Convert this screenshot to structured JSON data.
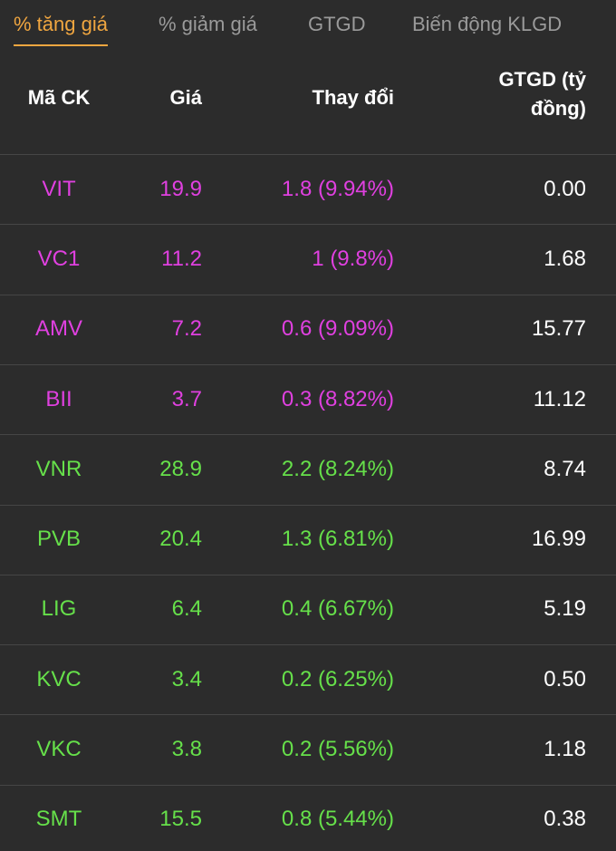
{
  "tabs": [
    "% tăng giá",
    "% giảm giá",
    "GTGD",
    "Biến động KLGD"
  ],
  "active_tab": 0,
  "table": {
    "headers": [
      "Mã CK",
      "Giá",
      "Thay đổi",
      "GTGD (tỷ đồng)"
    ],
    "rows": [
      {
        "color": "#e040e0",
        "cells": [
          "VIT",
          "19.9",
          "1.8 (9.94%)",
          "0.00"
        ]
      },
      {
        "color": "#e040e0",
        "cells": [
          "VC1",
          "11.2",
          "1 (9.8%)",
          "1.68"
        ]
      },
      {
        "color": "#e040e0",
        "cells": [
          "AMV",
          "7.2",
          "0.6 (9.09%)",
          "15.77"
        ]
      },
      {
        "color": "#e040e0",
        "cells": [
          "BII",
          "3.7",
          "0.3 (8.82%)",
          "11.12"
        ]
      },
      {
        "color": "#66e04a",
        "cells": [
          "VNR",
          "28.9",
          "2.2 (8.24%)",
          "8.74"
        ]
      },
      {
        "color": "#66e04a",
        "cells": [
          "PVB",
          "20.4",
          "1.3 (6.81%)",
          "16.99"
        ]
      },
      {
        "color": "#66e04a",
        "cells": [
          "LIG",
          "6.4",
          "0.4 (6.67%)",
          "5.19"
        ]
      },
      {
        "color": "#66e04a",
        "cells": [
          "KVC",
          "3.4",
          "0.2 (6.25%)",
          "0.50"
        ]
      },
      {
        "color": "#66e04a",
        "cells": [
          "VKC",
          "3.8",
          "0.2 (5.56%)",
          "1.18"
        ]
      },
      {
        "color": "#66e04a",
        "cells": [
          "SMT",
          "15.5",
          "0.8 (5.44%)",
          "0.38"
        ]
      }
    ]
  }
}
